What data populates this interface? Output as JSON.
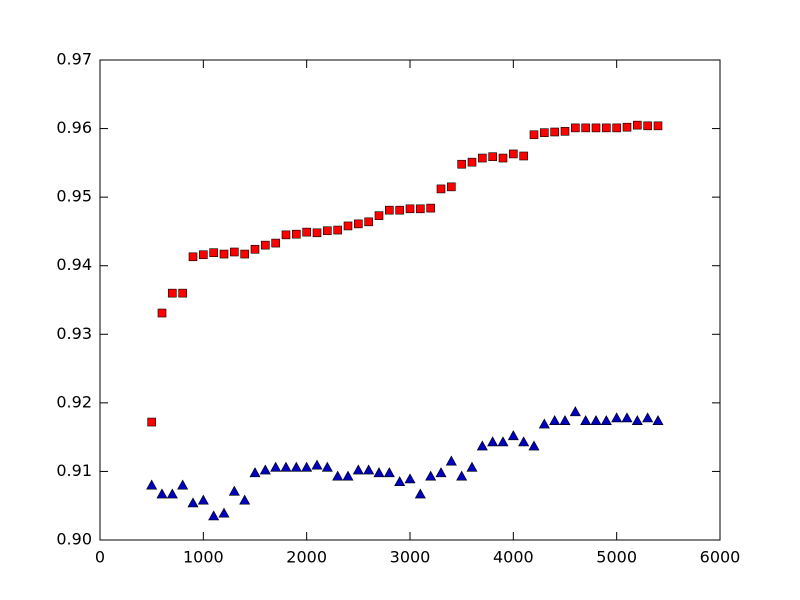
{
  "chart_data": {
    "type": "scatter",
    "x": [
      500,
      600,
      700,
      800,
      900,
      1000,
      1100,
      1200,
      1300,
      1400,
      1500,
      1600,
      1700,
      1800,
      1900,
      2000,
      2100,
      2200,
      2300,
      2400,
      2500,
      2600,
      2700,
      2800,
      2900,
      3000,
      3100,
      3200,
      3300,
      3400,
      3500,
      3600,
      3700,
      3800,
      3900,
      4000,
      4100,
      4200,
      4300,
      4400,
      4500,
      4600,
      4700,
      4800,
      4900,
      5000,
      5100,
      5200,
      5300,
      5400
    ],
    "series": [
      {
        "color": "#ff0000",
        "marker": "square",
        "values": [
          0.9172,
          0.9331,
          0.936,
          0.936,
          0.9413,
          0.9416,
          0.9419,
          0.9417,
          0.942,
          0.9417,
          0.9424,
          0.943,
          0.9433,
          0.9445,
          0.9446,
          0.9449,
          0.9448,
          0.9451,
          0.9452,
          0.9458,
          0.9461,
          0.9464,
          0.9473,
          0.9481,
          0.9481,
          0.9483,
          0.9483,
          0.9484,
          0.9512,
          0.9515,
          0.9548,
          0.9551,
          0.9557,
          0.9559,
          0.9557,
          0.9563,
          0.956,
          0.9591,
          0.9594,
          0.9595,
          0.9596,
          0.9601,
          0.9601,
          0.9601,
          0.9601,
          0.9601,
          0.9602,
          0.9605,
          0.9604,
          0.9604
        ]
      },
      {
        "color": "#0000bf",
        "marker": "triangle",
        "values": [
          0.908,
          0.9067,
          0.9067,
          0.908,
          0.9054,
          0.9058,
          0.9035,
          0.9039,
          0.9071,
          0.9058,
          0.9098,
          0.9102,
          0.9106,
          0.9106,
          0.9106,
          0.9106,
          0.9109,
          0.9106,
          0.9093,
          0.9093,
          0.9102,
          0.9102,
          0.9098,
          0.9098,
          0.9085,
          0.9089,
          0.9067,
          0.9093,
          0.9098,
          0.9115,
          0.9093,
          0.9106,
          0.9137,
          0.9143,
          0.9143,
          0.9152,
          0.9143,
          0.9137,
          0.9169,
          0.9174,
          0.9174,
          0.9187,
          0.9174,
          0.9174,
          0.9174,
          0.9178,
          0.9178,
          0.9174,
          0.9178,
          0.9174
        ]
      }
    ],
    "xlim": [
      0,
      6000
    ],
    "xticks": [
      0,
      1000,
      2000,
      3000,
      4000,
      5000,
      6000
    ],
    "ylim": [
      0.9,
      0.97
    ],
    "yticks": [
      {
        "value": 0.9,
        "label": "0.90"
      },
      0.91,
      0.92,
      0.93,
      0.94,
      0.95,
      0.96,
      0.97
    ],
    "grid": false
  }
}
